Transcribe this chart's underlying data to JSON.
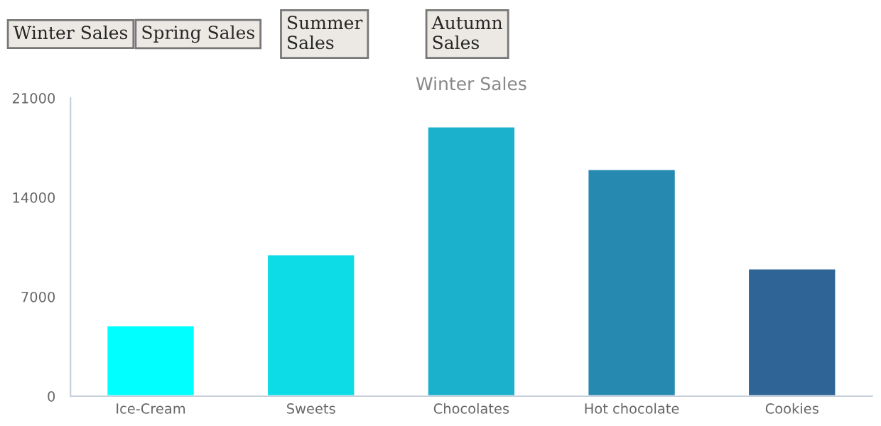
{
  "chart_data": {
    "type": "bar",
    "title": "Winter Sales",
    "categories": [
      "Ice-Cream",
      "Sweets",
      "Chocolates",
      "Hot chocolate",
      "Cookies"
    ],
    "values": [
      5000,
      10000,
      19000,
      16000,
      9000
    ],
    "colors": [
      "#00ffff",
      "#0ddbe6",
      "#1bb0cc",
      "#2589b0",
      "#2e6496"
    ],
    "ylim": [
      0,
      21000
    ],
    "yticks": [
      0,
      7000,
      14000,
      21000
    ],
    "grid": false,
    "legend": false,
    "annotations": [
      "Winter Sales",
      "Spring Sales",
      "Summer\nSales",
      "Autumn\nSales"
    ]
  }
}
